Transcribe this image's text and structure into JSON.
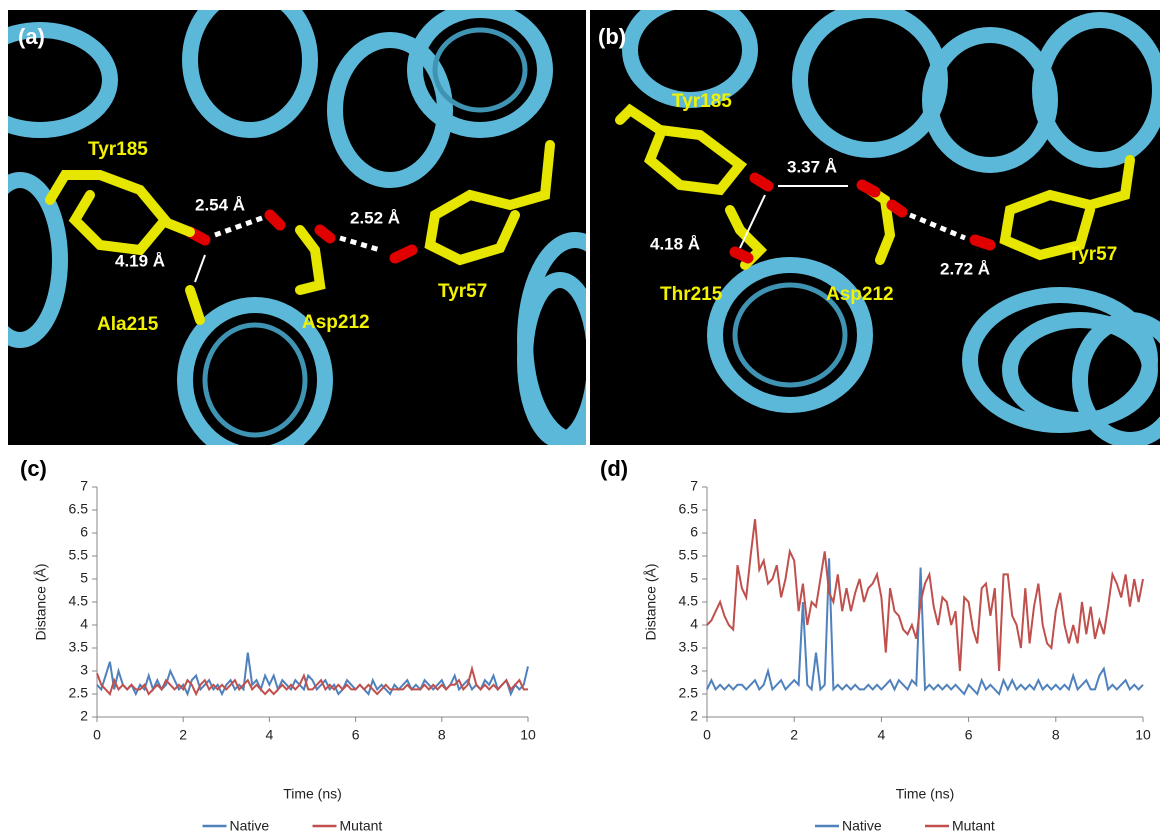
{
  "panels": [
    {
      "label": "(a)",
      "residues": [
        "Tyr185",
        "Ala215",
        "Asp212",
        "Tyr57"
      ],
      "distances": [
        "2.54 Å",
        "2.52 Å",
        "4.19 Å"
      ]
    },
    {
      "label": "(b)",
      "residues": [
        "Tyr185",
        "Thr215",
        "Asp212",
        "Tyr57"
      ],
      "distances": [
        "3.37 Å",
        "4.18 Å",
        "2.72 Å"
      ]
    }
  ],
  "chart_data": [
    {
      "type": "line",
      "label": "(c)",
      "xlabel": "Time (ns)",
      "ylabel": "Distance (Å)",
      "x": [
        0,
        0.1,
        0.2,
        0.3,
        0.4,
        0.5,
        0.6,
        0.7,
        0.8,
        0.9,
        1,
        1.1,
        1.2,
        1.3,
        1.4,
        1.5,
        1.6,
        1.7,
        1.8,
        1.9,
        2,
        2.1,
        2.2,
        2.3,
        2.4,
        2.5,
        2.6,
        2.7,
        2.8,
        2.9,
        3,
        3.1,
        3.2,
        3.3,
        3.4,
        3.5,
        3.6,
        3.7,
        3.8,
        3.9,
        4,
        4.1,
        4.2,
        4.3,
        4.4,
        4.5,
        4.6,
        4.7,
        4.8,
        4.9,
        5,
        5.1,
        5.2,
        5.3,
        5.4,
        5.5,
        5.6,
        5.7,
        5.8,
        5.9,
        6,
        6.1,
        6.2,
        6.3,
        6.4,
        6.5,
        6.6,
        6.7,
        6.8,
        6.9,
        7,
        7.1,
        7.2,
        7.3,
        7.4,
        7.5,
        7.6,
        7.7,
        7.8,
        7.9,
        8,
        8.1,
        8.2,
        8.3,
        8.4,
        8.5,
        8.6,
        8.7,
        8.8,
        8.9,
        9,
        9.1,
        9.2,
        9.3,
        9.4,
        9.5,
        9.6,
        9.7,
        9.8,
        9.9,
        10
      ],
      "series": [
        {
          "name": "Native",
          "color": "#4f81bd",
          "values": [
            2.7,
            2.6,
            2.9,
            3.2,
            2.6,
            3.0,
            2.7,
            2.6,
            2.7,
            2.5,
            2.7,
            2.6,
            2.9,
            2.6,
            2.8,
            2.6,
            2.7,
            3.0,
            2.8,
            2.6,
            2.7,
            2.5,
            2.8,
            2.9,
            2.6,
            2.7,
            2.8,
            2.6,
            2.7,
            2.5,
            2.7,
            2.8,
            2.6,
            2.7,
            2.6,
            3.4,
            2.7,
            2.8,
            2.6,
            2.9,
            2.7,
            2.9,
            2.6,
            2.8,
            2.7,
            2.6,
            2.8,
            2.7,
            2.6,
            2.9,
            2.8,
            2.6,
            2.7,
            2.8,
            2.6,
            2.7,
            2.5,
            2.6,
            2.8,
            2.7,
            2.6,
            2.7,
            2.6,
            2.5,
            2.8,
            2.6,
            2.7,
            2.6,
            2.5,
            2.7,
            2.6,
            2.7,
            2.8,
            2.6,
            2.7,
            2.6,
            2.8,
            2.7,
            2.6,
            2.7,
            2.8,
            2.6,
            2.7,
            2.9,
            2.6,
            2.7,
            2.8,
            2.6,
            2.7,
            2.6,
            2.8,
            2.7,
            2.9,
            2.6,
            2.7,
            2.8,
            2.5,
            2.7,
            2.6,
            2.7,
            3.1
          ]
        },
        {
          "name": "Mutant",
          "color": "#c0504d",
          "values": [
            2.95,
            2.7,
            2.6,
            2.5,
            2.8,
            2.6,
            2.7,
            2.6,
            2.7,
            2.6,
            2.6,
            2.7,
            2.5,
            2.6,
            2.7,
            2.6,
            2.8,
            2.7,
            2.6,
            2.7,
            2.6,
            2.8,
            2.7,
            2.5,
            2.7,
            2.8,
            2.6,
            2.7,
            2.6,
            2.7,
            2.6,
            2.7,
            2.8,
            2.6,
            2.7,
            2.8,
            2.6,
            2.7,
            2.6,
            2.5,
            2.6,
            2.5,
            2.6,
            2.7,
            2.6,
            2.7,
            2.6,
            2.7,
            2.9,
            2.6,
            2.6,
            2.7,
            2.8,
            2.6,
            2.7,
            2.6,
            2.7,
            2.6,
            2.7,
            2.6,
            2.6,
            2.7,
            2.6,
            2.7,
            2.6,
            2.5,
            2.6,
            2.7,
            2.6,
            2.6,
            2.6,
            2.6,
            2.7,
            2.6,
            2.6,
            2.6,
            2.7,
            2.6,
            2.7,
            2.6,
            2.7,
            2.6,
            2.7,
            2.7,
            2.8,
            2.6,
            2.7,
            3.05,
            2.7,
            2.6,
            2.7,
            2.6,
            2.7,
            2.6,
            2.7,
            2.8,
            2.6,
            2.7,
            2.8,
            2.6,
            2.6
          ]
        }
      ],
      "xlim": [
        0,
        10
      ],
      "xticks": [
        0,
        2,
        4,
        6,
        8,
        10
      ],
      "ylim": [
        2,
        7
      ],
      "yticks": [
        2,
        2.5,
        3,
        3.5,
        4,
        4.5,
        5,
        5.5,
        6,
        6.5,
        7
      ],
      "legend": "bottom"
    },
    {
      "type": "line",
      "label": "(d)",
      "xlabel": "Time (ns)",
      "ylabel": "Distance (Å)",
      "x": [
        0,
        0.1,
        0.2,
        0.3,
        0.4,
        0.5,
        0.6,
        0.7,
        0.8,
        0.9,
        1,
        1.1,
        1.2,
        1.3,
        1.4,
        1.5,
        1.6,
        1.7,
        1.8,
        1.9,
        2,
        2.1,
        2.2,
        2.3,
        2.4,
        2.5,
        2.6,
        2.7,
        2.8,
        2.9,
        3,
        3.1,
        3.2,
        3.3,
        3.4,
        3.5,
        3.6,
        3.7,
        3.8,
        3.9,
        4,
        4.1,
        4.2,
        4.3,
        4.4,
        4.5,
        4.6,
        4.7,
        4.8,
        4.9,
        5,
        5.1,
        5.2,
        5.3,
        5.4,
        5.5,
        5.6,
        5.7,
        5.8,
        5.9,
        6,
        6.1,
        6.2,
        6.3,
        6.4,
        6.5,
        6.6,
        6.7,
        6.8,
        6.9,
        7,
        7.1,
        7.2,
        7.3,
        7.4,
        7.5,
        7.6,
        7.7,
        7.8,
        7.9,
        8,
        8.1,
        8.2,
        8.3,
        8.4,
        8.5,
        8.6,
        8.7,
        8.8,
        8.9,
        9,
        9.1,
        9.2,
        9.3,
        9.4,
        9.5,
        9.6,
        9.7,
        9.8,
        9.9,
        10
      ],
      "series": [
        {
          "name": "Native",
          "color": "#4f81bd",
          "values": [
            2.6,
            2.8,
            2.6,
            2.7,
            2.6,
            2.7,
            2.6,
            2.7,
            2.7,
            2.6,
            2.7,
            2.8,
            2.6,
            2.7,
            3.0,
            2.6,
            2.7,
            2.8,
            2.6,
            2.7,
            2.8,
            2.7,
            4.5,
            2.7,
            2.6,
            3.4,
            2.6,
            2.7,
            5.45,
            2.6,
            2.7,
            2.6,
            2.7,
            2.6,
            2.7,
            2.6,
            2.6,
            2.7,
            2.6,
            2.7,
            2.6,
            2.7,
            2.8,
            2.6,
            2.8,
            2.7,
            2.6,
            2.8,
            2.7,
            5.25,
            2.6,
            2.7,
            2.6,
            2.7,
            2.6,
            2.7,
            2.6,
            2.7,
            2.6,
            2.5,
            2.7,
            2.6,
            2.5,
            2.8,
            2.6,
            2.7,
            2.6,
            2.5,
            2.8,
            2.6,
            2.8,
            2.6,
            2.7,
            2.6,
            2.7,
            2.6,
            2.8,
            2.6,
            2.7,
            2.6,
            2.7,
            2.6,
            2.7,
            2.6,
            2.9,
            2.6,
            2.7,
            2.8,
            2.6,
            2.6,
            2.9,
            3.05,
            2.6,
            2.7,
            2.6,
            2.7,
            2.8,
            2.6,
            2.7,
            2.6,
            2.7
          ]
        },
        {
          "name": "Mutant",
          "color": "#c0504d",
          "values": [
            4.0,
            4.1,
            4.3,
            4.5,
            4.2,
            4.0,
            3.9,
            5.3,
            4.8,
            4.6,
            5.5,
            6.3,
            5.2,
            5.4,
            4.9,
            5.0,
            5.3,
            4.6,
            5.0,
            5.6,
            5.4,
            4.3,
            4.9,
            4.0,
            4.5,
            4.4,
            5.0,
            5.6,
            4.7,
            4.5,
            5.1,
            4.3,
            4.8,
            4.3,
            4.7,
            5.0,
            4.5,
            4.8,
            4.9,
            5.1,
            4.6,
            3.4,
            4.8,
            4.3,
            4.2,
            3.9,
            3.8,
            4.0,
            3.7,
            4.5,
            4.9,
            5.1,
            4.4,
            4.0,
            4.6,
            4.5,
            4.0,
            4.3,
            3.0,
            4.6,
            4.5,
            3.9,
            3.6,
            4.8,
            4.9,
            4.2,
            4.8,
            3.0,
            5.1,
            5.1,
            4.2,
            4.0,
            3.5,
            4.8,
            3.6,
            4.4,
            4.9,
            4.0,
            3.6,
            3.5,
            4.3,
            4.7,
            4.0,
            3.6,
            4.0,
            3.6,
            4.5,
            3.8,
            4.4,
            3.7,
            4.1,
            3.8,
            4.4,
            5.1,
            4.9,
            4.6,
            5.1,
            4.4,
            5.0,
            4.5,
            5.0
          ]
        }
      ],
      "xlim": [
        0,
        10
      ],
      "xticks": [
        0,
        2,
        4,
        6,
        8,
        10
      ],
      "ylim": [
        2,
        7
      ],
      "yticks": [
        2,
        2.5,
        3,
        3.5,
        4,
        4.5,
        5,
        5.5,
        6,
        6.5,
        7
      ],
      "legend": "bottom"
    }
  ]
}
